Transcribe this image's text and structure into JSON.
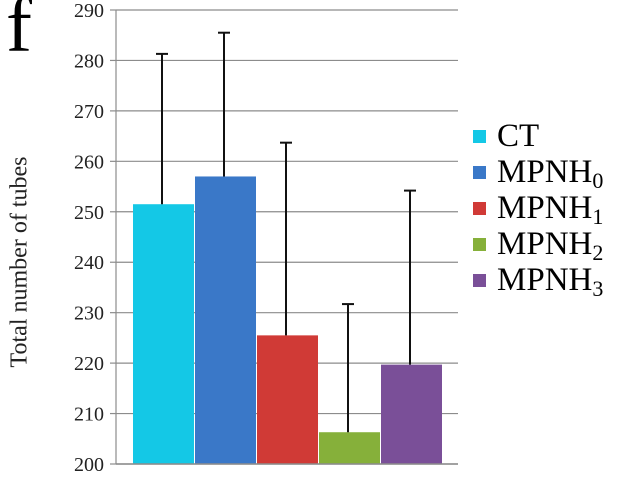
{
  "panel_label": "f",
  "chart_data": {
    "type": "bar",
    "ylabel": "Total number of tubes",
    "ylim": [
      200,
      290
    ],
    "yticks": [
      200,
      210,
      220,
      230,
      240,
      250,
      260,
      270,
      280,
      290
    ],
    "grid": true,
    "legend_position": "right",
    "series": [
      {
        "name": "CT",
        "name_main": "CT",
        "name_sub": "",
        "value": 251.5,
        "error": 29.8,
        "color": "#14c8e6"
      },
      {
        "name": "MPNH0",
        "name_main": "MPNH",
        "name_sub": "0",
        "value": 257.0,
        "error": 28.5,
        "color": "#3a78c8"
      },
      {
        "name": "MPNH1",
        "name_main": "MPNH",
        "name_sub": "1",
        "value": 225.5,
        "error": 38.2,
        "color": "#d03a36"
      },
      {
        "name": "MPNH2",
        "name_main": "MPNH",
        "name_sub": "2",
        "value": 206.3,
        "error": 25.4,
        "color": "#86b03a"
      },
      {
        "name": "MPNH3",
        "name_main": "MPNH",
        "name_sub": "3",
        "value": 219.7,
        "error": 34.5,
        "color": "#7a4f98"
      }
    ]
  }
}
